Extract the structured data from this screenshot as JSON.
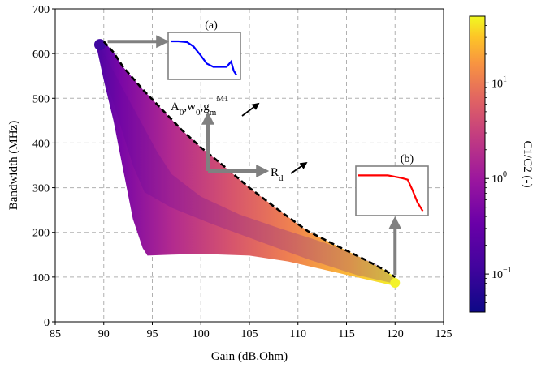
{
  "chart_data": {
    "type": "scatter",
    "xlabel": "Gain (dB.Ohm)",
    "ylabel": "Bandwidth (MHz)",
    "xlim": [
      85,
      125
    ],
    "ylim": [
      0,
      700
    ],
    "xticks": [
      85,
      90,
      95,
      100,
      105,
      110,
      115,
      120,
      125
    ],
    "yticks": [
      0,
      100,
      200,
      300,
      400,
      500,
      600,
      700
    ],
    "grid": true,
    "colorbar": {
      "label": "C1/C2 (-)",
      "scale": "log",
      "range": [
        0.04,
        50
      ],
      "colormap": "plasma",
      "tick_labels": [
        {
          "base": "10",
          "exp": "1",
          "value": 10
        },
        {
          "base": "10",
          "exp": "0",
          "value": 1
        },
        {
          "base": "10",
          "exp": "−1",
          "value": 0.1
        }
      ]
    },
    "region": {
      "description_free": true,
      "upper_boundary": [
        [
          89.5,
          625
        ],
        [
          90,
          627
        ],
        [
          91,
          603
        ],
        [
          92,
          570
        ],
        [
          94,
          520
        ],
        [
          96,
          475
        ],
        [
          98,
          430
        ],
        [
          100,
          390
        ],
        [
          102,
          355
        ],
        [
          105,
          300
        ],
        [
          108,
          250
        ],
        [
          111,
          203
        ],
        [
          114,
          170
        ],
        [
          117,
          138
        ],
        [
          119,
          115
        ],
        [
          120,
          100
        ]
      ],
      "lower_boundary": [
        [
          120,
          80
        ],
        [
          117,
          95
        ],
        [
          113,
          115
        ],
        [
          109,
          135
        ],
        [
          105,
          148
        ],
        [
          100,
          152
        ],
        [
          97,
          150
        ],
        [
          94.5,
          148
        ],
        [
          94,
          165
        ],
        [
          93,
          230
        ],
        [
          92,
          340
        ],
        [
          91,
          450
        ],
        [
          90,
          540
        ],
        [
          89.3,
          610
        ]
      ]
    },
    "frontier": {
      "style": "dashed",
      "points": [
        [
          90,
          627
        ],
        [
          91,
          603
        ],
        [
          92,
          570
        ],
        [
          94,
          520
        ],
        [
          96,
          475
        ],
        [
          98,
          430
        ],
        [
          100,
          390
        ],
        [
          102,
          355
        ],
        [
          105,
          300
        ],
        [
          108,
          250
        ],
        [
          111,
          203
        ],
        [
          114,
          170
        ],
        [
          117,
          138
        ],
        [
          119,
          115
        ],
        [
          120,
          100
        ]
      ]
    },
    "annotations": {
      "inset_a": {
        "label": "(a)",
        "color": "#0000ff",
        "curve": [
          [
            0,
            0.88
          ],
          [
            0.12,
            0.88
          ],
          [
            0.25,
            0.86
          ],
          [
            0.35,
            0.75
          ],
          [
            0.45,
            0.55
          ],
          [
            0.55,
            0.33
          ],
          [
            0.65,
            0.25
          ],
          [
            0.85,
            0.25
          ],
          [
            0.92,
            0.38
          ],
          [
            0.96,
            0.15
          ],
          [
            1.0,
            0.05
          ]
        ]
      },
      "inset_b": {
        "label": "(b)",
        "color": "#ff0000",
        "curve": [
          [
            0,
            0.88
          ],
          [
            0.45,
            0.88
          ],
          [
            0.55,
            0.85
          ],
          [
            0.65,
            0.82
          ],
          [
            0.75,
            0.78
          ],
          [
            0.82,
            0.55
          ],
          [
            0.9,
            0.25
          ],
          [
            0.98,
            0.05
          ]
        ]
      },
      "param_label": {
        "base": "A",
        "sub0": "0",
        "w": "w",
        "sub1": "0",
        "g": "g",
        "sub2": "m",
        "sup": "M1"
      },
      "rd_label": {
        "base": "R",
        "sub": "d"
      }
    }
  }
}
